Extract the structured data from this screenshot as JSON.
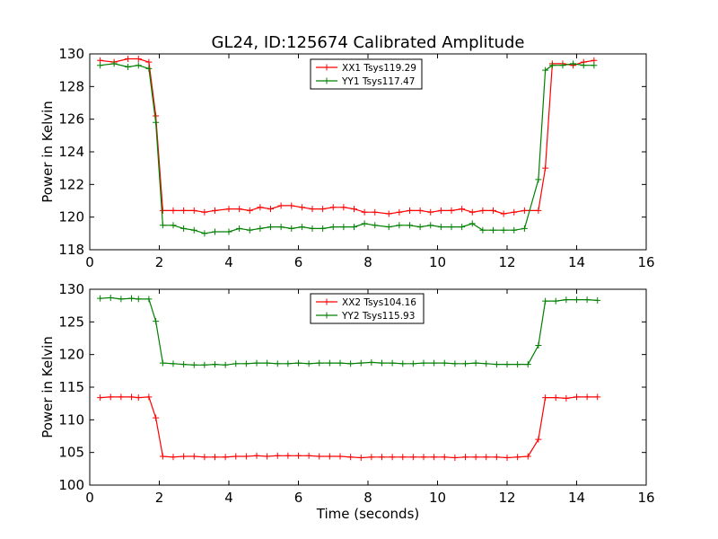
{
  "figure_title": "GL24, ID:125674 Calibrated Amplitude",
  "chart_data": [
    {
      "type": "line",
      "title": "GL24, ID:125674 Calibrated Amplitude",
      "xlabel": "",
      "ylabel": "Power in Kelvin",
      "xlim": [
        0,
        16
      ],
      "ylim": [
        118,
        130
      ],
      "xticks": [
        0,
        2,
        4,
        6,
        8,
        10,
        12,
        14,
        16
      ],
      "yticks": [
        118,
        120,
        122,
        124,
        126,
        128,
        130
      ],
      "grid": false,
      "legend_position": "top-center",
      "x": [
        0.3,
        0.7,
        1.1,
        1.4,
        1.7,
        1.9,
        2.1,
        2.4,
        2.7,
        3.0,
        3.3,
        3.6,
        4.0,
        4.3,
        4.6,
        4.9,
        5.2,
        5.5,
        5.8,
        6.1,
        6.4,
        6.7,
        7.0,
        7.3,
        7.6,
        7.9,
        8.2,
        8.6,
        8.9,
        9.2,
        9.5,
        9.8,
        10.1,
        10.4,
        10.7,
        11.0,
        11.3,
        11.6,
        11.9,
        12.2,
        12.5,
        12.9,
        13.1,
        13.3,
        13.6,
        13.9,
        14.2,
        14.5
      ],
      "series": [
        {
          "name": "XX1 Tsys119.29",
          "color": "#ff0000",
          "values": [
            129.6,
            129.5,
            129.7,
            129.7,
            129.5,
            126.2,
            120.4,
            120.4,
            120.4,
            120.4,
            120.3,
            120.4,
            120.5,
            120.5,
            120.4,
            120.6,
            120.5,
            120.7,
            120.7,
            120.6,
            120.5,
            120.5,
            120.6,
            120.6,
            120.5,
            120.3,
            120.3,
            120.2,
            120.3,
            120.4,
            120.4,
            120.3,
            120.4,
            120.4,
            120.5,
            120.3,
            120.4,
            120.4,
            120.2,
            120.3,
            120.4,
            120.4,
            123.0,
            129.4,
            129.4,
            129.3,
            129.5,
            129.6
          ]
        },
        {
          "name": "YY1 Tsys117.47",
          "color": "#008000",
          "values": [
            129.3,
            129.4,
            129.2,
            129.3,
            129.1,
            125.8,
            119.5,
            119.5,
            119.3,
            119.2,
            119.0,
            119.1,
            119.1,
            119.3,
            119.2,
            119.3,
            119.4,
            119.4,
            119.3,
            119.4,
            119.3,
            119.3,
            119.4,
            119.4,
            119.4,
            119.6,
            119.5,
            119.4,
            119.5,
            119.5,
            119.4,
            119.5,
            119.4,
            119.4,
            119.4,
            119.6,
            119.2,
            119.2,
            119.2,
            119.2,
            119.3,
            122.3,
            129.0,
            129.3,
            129.3,
            129.4,
            129.3,
            129.3
          ]
        }
      ]
    },
    {
      "type": "line",
      "title": "",
      "xlabel": "Time (seconds)",
      "ylabel": "Power in Kelvin",
      "xlim": [
        0,
        16
      ],
      "ylim": [
        100,
        130
      ],
      "xticks": [
        0,
        2,
        4,
        6,
        8,
        10,
        12,
        14,
        16
      ],
      "yticks": [
        100,
        105,
        110,
        115,
        120,
        125,
        130
      ],
      "grid": false,
      "legend_position": "top-center",
      "x": [
        0.3,
        0.6,
        0.9,
        1.2,
        1.4,
        1.7,
        1.9,
        2.1,
        2.4,
        2.7,
        3.0,
        3.3,
        3.6,
        3.9,
        4.2,
        4.5,
        4.8,
        5.1,
        5.4,
        5.7,
        6.0,
        6.3,
        6.6,
        6.9,
        7.2,
        7.5,
        7.8,
        8.1,
        8.4,
        8.7,
        9.0,
        9.3,
        9.6,
        9.9,
        10.2,
        10.5,
        10.8,
        11.1,
        11.4,
        11.7,
        12.0,
        12.3,
        12.6,
        12.9,
        13.1,
        13.4,
        13.7,
        14.0,
        14.3,
        14.6
      ],
      "series": [
        {
          "name": "XX2 Tsys104.16",
          "color": "#ff0000",
          "values": [
            113.4,
            113.5,
            113.5,
            113.5,
            113.4,
            113.5,
            110.3,
            104.4,
            104.3,
            104.4,
            104.4,
            104.3,
            104.3,
            104.3,
            104.4,
            104.4,
            104.5,
            104.4,
            104.5,
            104.5,
            104.5,
            104.5,
            104.4,
            104.4,
            104.4,
            104.3,
            104.2,
            104.3,
            104.3,
            104.3,
            104.3,
            104.3,
            104.3,
            104.3,
            104.3,
            104.2,
            104.3,
            104.3,
            104.3,
            104.3,
            104.2,
            104.3,
            104.4,
            107.0,
            113.4,
            113.4,
            113.3,
            113.5,
            113.5,
            113.5
          ]
        },
        {
          "name": "YY2 Tsys115.93",
          "color": "#008000",
          "values": [
            128.6,
            128.7,
            128.5,
            128.6,
            128.5,
            128.5,
            125.1,
            118.7,
            118.6,
            118.5,
            118.4,
            118.4,
            118.5,
            118.4,
            118.6,
            118.6,
            118.7,
            118.7,
            118.6,
            118.6,
            118.7,
            118.6,
            118.7,
            118.7,
            118.7,
            118.6,
            118.7,
            118.8,
            118.7,
            118.7,
            118.6,
            118.6,
            118.7,
            118.7,
            118.7,
            118.6,
            118.6,
            118.7,
            118.6,
            118.5,
            118.5,
            118.5,
            118.5,
            121.4,
            128.2,
            128.2,
            128.4,
            128.4,
            128.4,
            128.3
          ]
        }
      ]
    }
  ]
}
